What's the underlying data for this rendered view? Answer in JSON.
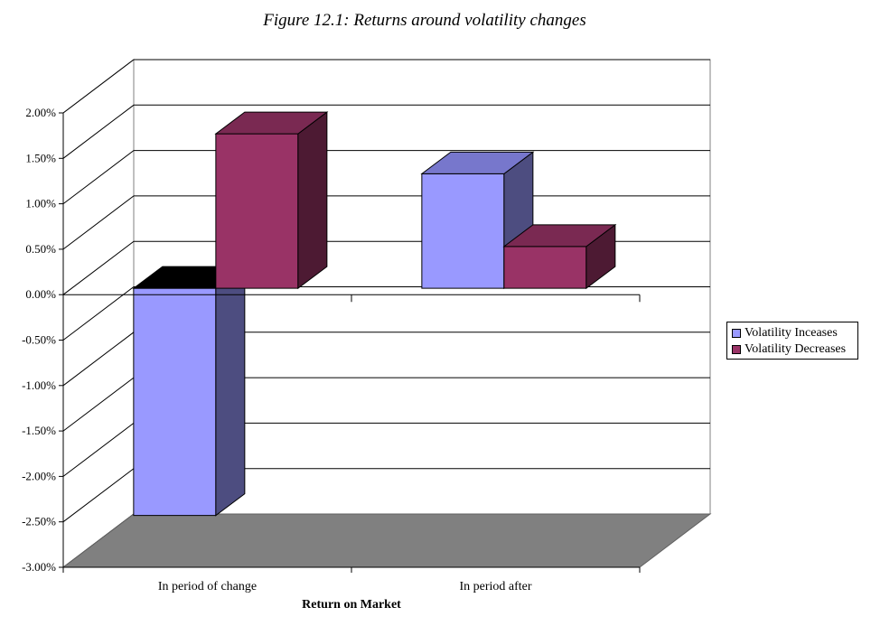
{
  "chart_data": {
    "type": "bar",
    "title": "Figure 12.1: Returns around volatility changes",
    "xlabel": "Return on Market",
    "ylabel": "",
    "categories": [
      "In period of change",
      "In period after"
    ],
    "series": [
      {
        "name": "Volatility Inceases",
        "values": [
          -2.5,
          1.26
        ],
        "color": "#9999ff",
        "side_color": "#4d4d80",
        "top_color": "#7777cc"
      },
      {
        "name": "Volatility Decreases",
        "values": [
          1.7,
          0.46
        ],
        "color": "#993366",
        "side_color": "#4d1a33",
        "top_color": "#7a2952"
      }
    ],
    "ylim": [
      -3.0,
      2.0
    ],
    "ytick_labels": [
      "2.00%",
      "1.50%",
      "1.00%",
      "0.50%",
      "0.00%",
      "-0.50%",
      "-1.00%",
      "-1.50%",
      "-2.00%",
      "-2.50%",
      "-3.00%"
    ],
    "grid": true,
    "legend_position": "right",
    "style": "3d-column",
    "floor_color": "#808080"
  }
}
